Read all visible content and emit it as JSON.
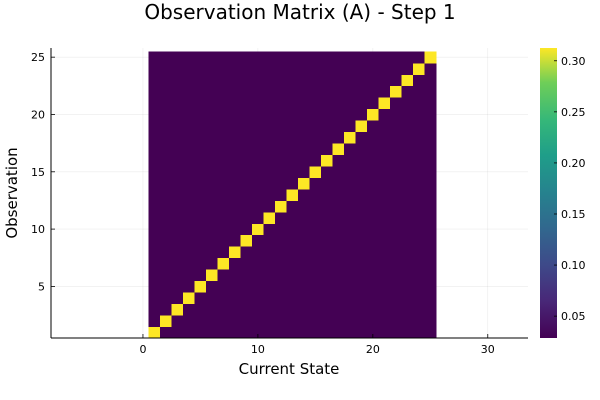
{
  "chart_data": {
    "type": "heatmap",
    "title": "Observation Matrix (A) - Step 1",
    "xlabel": "Current State",
    "ylabel": "Observation",
    "xlim": [
      -8,
      33.5
    ],
    "ylim": [
      0.5,
      25.8
    ],
    "xticks": [
      0,
      10,
      20,
      30
    ],
    "yticks": [
      5,
      10,
      15,
      20,
      25
    ],
    "grid": true,
    "legend": "none",
    "n_states": 25,
    "n_observations": 25,
    "diagonal_value": 0.3125,
    "off_diagonal_value": 0.0286,
    "colorbar": {
      "colormap": "viridis",
      "range": [
        0.0286,
        0.3125
      ],
      "ticks": [
        0.05,
        0.1,
        0.15,
        0.2,
        0.25,
        0.3
      ],
      "tick_labels": [
        "0.05",
        "0.10",
        "0.15",
        "0.20",
        "0.25",
        "0.30"
      ]
    }
  }
}
